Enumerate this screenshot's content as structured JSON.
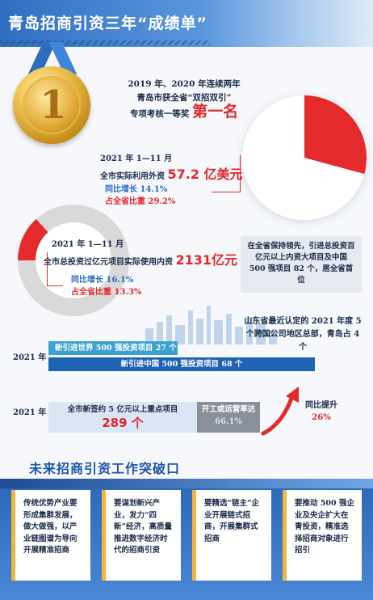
{
  "header": {
    "title": "青岛招商引资三年“成绩单”"
  },
  "award": {
    "medal_number": "1",
    "line1": "2019 年、2020 年连续两年",
    "line2": "青岛市获全省“双招双引”",
    "line3_prefix": "专项考核一等奖",
    "line3_highlight": "第一名"
  },
  "foreign_investment": {
    "period": "2021 年 1—11 月",
    "label": "全市实际利用外资",
    "value": "57.2 亿美元",
    "growth": "同比增长 14.1%",
    "share": "占全省比重 29.2%",
    "share_percent": 29.2
  },
  "domestic_investment": {
    "period": "2021 年 1—11 月",
    "label": "全市总投资过亿元项目实际使用内资",
    "value": "2131亿元",
    "growth": "同比增长 16.1%",
    "share": "占全省比重 13.3%",
    "share_percent": 13.3
  },
  "province_note": {
    "text": "在全省保持领先，引进总投资百亿元以上内资大项目及中国 500 强项目 82 个，居全省首位"
  },
  "hq_note": {
    "text": "山东省最近认定的 2021 年度 5 个跨国公司地区总部，青岛占 4 个"
  },
  "projects_2021": {
    "year": "2021 年",
    "world500": "新引进世界 500 强投资项目 27 个",
    "china500": "新引进中国 500 强投资项目 68 个"
  },
  "signed_2021": {
    "year": "2021 年",
    "label": "全市新签约 5 亿元以上重点项目",
    "value": "289 个",
    "open_label": "开工或运营率达",
    "open_value": "66.1%",
    "growth_label": "同比提升",
    "growth_value": "26%"
  },
  "future": {
    "title": "未来招商引资工作突破口",
    "cards": [
      {
        "text": "传统优势产业要形成集群发展，做大做强，以产业链图谱为导向开展精准招商"
      },
      {
        "text": "要谋划新兴产业，发力“四新”经济，高质量推进数字经济时代的招商引资"
      },
      {
        "text": "要精选“链主”企业开展链式招商，开展集群式招商"
      },
      {
        "text": "要推动 500 强企业及央企扩大在青投资，精准选择招商对象进行招引"
      }
    ]
  }
}
